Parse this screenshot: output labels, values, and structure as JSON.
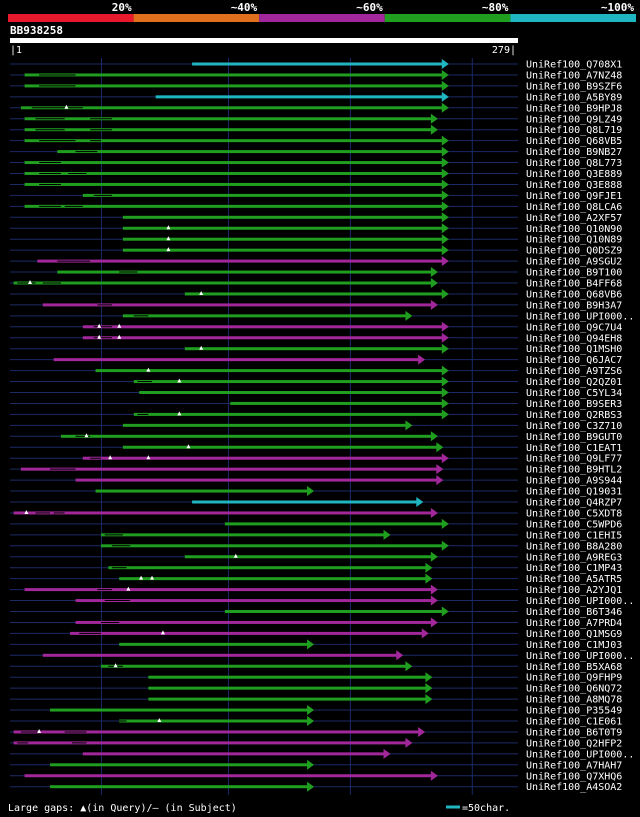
{
  "chart_data": {
    "type": "alignment-overview",
    "query": {
      "name": "BB938258",
      "start": 1,
      "end": 279
    },
    "identity_scale": [
      {
        "label": "20%",
        "color": "#e8192c"
      },
      {
        "label": "~40%",
        "color": "#e0701c"
      },
      {
        "label": "~60%",
        "color": "#a1279a"
      },
      {
        "label": "~80%",
        "color": "#1f9e1f"
      },
      {
        "label": "~100%",
        "color": "#1fb5c1"
      }
    ],
    "footer": {
      "gaps_label": "Large gaps: ▲(in Query)/— (in Subject)",
      "scale_label": "=50char."
    },
    "hits": [
      {
        "name": "UniRef100_Q708X1",
        "start": 100,
        "end": 241,
        "color": "cyan",
        "gaps_q": [],
        "gaps_s": []
      },
      {
        "name": "UniRef100_A7NZ48",
        "start": 8,
        "end": 241,
        "color": "green",
        "gaps_q": [],
        "gaps_s": [
          [
            16,
            36
          ]
        ]
      },
      {
        "name": "UniRef100_B9SZF6",
        "start": 8,
        "end": 241,
        "color": "green",
        "gaps_q": [],
        "gaps_s": [
          [
            16,
            36
          ]
        ]
      },
      {
        "name": "UniRef100_A5BY89",
        "start": 80,
        "end": 241,
        "color": "cyan",
        "gaps_q": [],
        "gaps_s": []
      },
      {
        "name": "UniRef100_B9HPJ8",
        "start": 6,
        "end": 241,
        "color": "green",
        "gaps_q": [
          31
        ],
        "gaps_s": [
          [
            12,
            40
          ]
        ]
      },
      {
        "name": "UniRef100_Q9LZ49",
        "start": 8,
        "end": 235,
        "color": "green",
        "gaps_q": [],
        "gaps_s": [
          [
            14,
            30
          ],
          [
            44,
            56
          ]
        ]
      },
      {
        "name": "UniRef100_Q8L719",
        "start": 8,
        "end": 235,
        "color": "green",
        "gaps_q": [],
        "gaps_s": [
          [
            14,
            30
          ],
          [
            44,
            56
          ]
        ]
      },
      {
        "name": "UniRef100_Q68VB5",
        "start": 8,
        "end": 241,
        "color": "green",
        "gaps_q": [],
        "gaps_s": [
          [
            16,
            36
          ],
          [
            44,
            50
          ]
        ]
      },
      {
        "name": "UniRef100_B9NB27",
        "start": 26,
        "end": 241,
        "color": "green",
        "gaps_q": [],
        "gaps_s": [
          [
            36,
            48
          ]
        ]
      },
      {
        "name": "UniRef100_Q8L773",
        "start": 8,
        "end": 241,
        "color": "green",
        "gaps_q": [],
        "gaps_s": [
          [
            16,
            28
          ]
        ]
      },
      {
        "name": "UniRef100_Q3E889",
        "start": 8,
        "end": 241,
        "color": "green",
        "gaps_q": [],
        "gaps_s": [
          [
            16,
            28
          ],
          [
            32,
            42
          ]
        ]
      },
      {
        "name": "UniRef100_Q3E888",
        "start": 8,
        "end": 241,
        "color": "green",
        "gaps_q": [],
        "gaps_s": [
          [
            16,
            28
          ]
        ]
      },
      {
        "name": "UniRef100_Q9FJE1",
        "start": 40,
        "end": 241,
        "color": "green",
        "gaps_q": [],
        "gaps_s": [
          [
            46,
            56
          ]
        ]
      },
      {
        "name": "UniRef100_Q8LCA6",
        "start": 8,
        "end": 241,
        "color": "green",
        "gaps_q": [],
        "gaps_s": [
          [
            16,
            28
          ],
          [
            30,
            40
          ]
        ]
      },
      {
        "name": "UniRef100_A2XF57",
        "start": 62,
        "end": 241,
        "color": "green",
        "gaps_q": [],
        "gaps_s": []
      },
      {
        "name": "UniRef100_Q10N90",
        "start": 62,
        "end": 241,
        "color": "green",
        "gaps_q": [
          87
        ],
        "gaps_s": []
      },
      {
        "name": "UniRef100_Q10N89",
        "start": 62,
        "end": 241,
        "color": "green",
        "gaps_q": [
          87
        ],
        "gaps_s": []
      },
      {
        "name": "UniRef100_Q0DSZ9",
        "start": 62,
        "end": 241,
        "color": "green",
        "gaps_q": [
          87
        ],
        "gaps_s": []
      },
      {
        "name": "UniRef100_A9SGU2",
        "start": 15,
        "end": 241,
        "color": "purple",
        "gaps_q": [],
        "gaps_s": [
          [
            26,
            44
          ]
        ]
      },
      {
        "name": "UniRef100_B9T100",
        "start": 26,
        "end": 235,
        "color": "green",
        "gaps_q": [],
        "gaps_s": [
          [
            60,
            70
          ]
        ]
      },
      {
        "name": "UniRef100_B4FF68",
        "start": 2,
        "end": 235,
        "color": "green",
        "gaps_q": [
          11
        ],
        "gaps_s": [
          [
            4,
            14
          ],
          [
            18,
            28
          ]
        ]
      },
      {
        "name": "UniRef100_Q68VB6",
        "start": 96,
        "end": 241,
        "color": "green",
        "gaps_q": [
          105
        ],
        "gaps_s": []
      },
      {
        "name": "UniRef100_B9H3A7",
        "start": 18,
        "end": 235,
        "color": "purple",
        "gaps_q": [],
        "gaps_s": [
          [
            48,
            56
          ]
        ]
      },
      {
        "name": "UniRef100_UPI000..",
        "start": 62,
        "end": 221,
        "color": "green",
        "gaps_q": [],
        "gaps_s": [
          [
            68,
            76
          ]
        ]
      },
      {
        "name": "UniRef100_Q9C7U4",
        "start": 40,
        "end": 241,
        "color": "purple",
        "gaps_q": [
          49,
          60
        ],
        "gaps_s": [
          [
            46,
            56
          ]
        ]
      },
      {
        "name": "UniRef100_Q94EH8",
        "start": 40,
        "end": 241,
        "color": "purple",
        "gaps_q": [
          49,
          60
        ],
        "gaps_s": [
          [
            46,
            56
          ]
        ]
      },
      {
        "name": "UniRef100_Q1MSH0",
        "start": 96,
        "end": 241,
        "color": "green",
        "gaps_q": [
          105
        ],
        "gaps_s": []
      },
      {
        "name": "UniRef100_Q6JAC7",
        "start": 24,
        "end": 228,
        "color": "purple",
        "gaps_q": [],
        "gaps_s": []
      },
      {
        "name": "UniRef100_A9TZS6",
        "start": 47,
        "end": 241,
        "color": "green",
        "gaps_q": [
          76
        ],
        "gaps_s": []
      },
      {
        "name": "UniRef100_Q2QZ01",
        "start": 68,
        "end": 241,
        "color": "green",
        "gaps_q": [
          93
        ],
        "gaps_s": [
          [
            70,
            78
          ]
        ]
      },
      {
        "name": "UniRef100_C5YL34",
        "start": 71,
        "end": 241,
        "color": "green",
        "gaps_q": [],
        "gaps_s": []
      },
      {
        "name": "UniRef100_B9SER3",
        "start": 121,
        "end": 241,
        "color": "green",
        "gaps_q": [],
        "gaps_s": []
      },
      {
        "name": "UniRef100_Q2RBS3",
        "start": 68,
        "end": 241,
        "color": "green",
        "gaps_q": [
          93
        ],
        "gaps_s": [
          [
            70,
            76
          ]
        ]
      },
      {
        "name": "UniRef100_C3Z710",
        "start": 62,
        "end": 221,
        "color": "green",
        "gaps_q": [],
        "gaps_s": []
      },
      {
        "name": "UniRef100_B9GUT0",
        "start": 28,
        "end": 235,
        "color": "green",
        "gaps_q": [
          42
        ],
        "gaps_s": [
          [
            36,
            44
          ]
        ]
      },
      {
        "name": "UniRef100_C1EAT1",
        "start": 62,
        "end": 238,
        "color": "green",
        "gaps_q": [
          98
        ],
        "gaps_s": []
      },
      {
        "name": "UniRef100_Q9LF77",
        "start": 40,
        "end": 241,
        "color": "purple",
        "gaps_q": [
          55,
          76
        ],
        "gaps_s": [
          [
            44,
            50
          ]
        ]
      },
      {
        "name": "UniRef100_B9HTL2",
        "start": 6,
        "end": 238,
        "color": "purple",
        "gaps_q": [],
        "gaps_s": [
          [
            22,
            36
          ]
        ]
      },
      {
        "name": "UniRef100_A9S944",
        "start": 36,
        "end": 238,
        "color": "purple",
        "gaps_q": [],
        "gaps_s": []
      },
      {
        "name": "UniRef100_Q19031",
        "start": 47,
        "end": 167,
        "color": "green",
        "gaps_q": [],
        "gaps_s": []
      },
      {
        "name": "UniRef100_Q4RZP7",
        "start": 100,
        "end": 227,
        "color": "cyan",
        "gaps_q": [],
        "gaps_s": []
      },
      {
        "name": "UniRef100_C5XDT8",
        "start": 2,
        "end": 235,
        "color": "purple",
        "gaps_q": [
          9
        ],
        "gaps_s": [
          [
            14,
            22
          ],
          [
            24,
            30
          ]
        ]
      },
      {
        "name": "UniRef100_C5WPD6",
        "start": 118,
        "end": 241,
        "color": "green",
        "gaps_q": [],
        "gaps_s": []
      },
      {
        "name": "UniRef100_C1EHI5",
        "start": 50,
        "end": 209,
        "color": "green",
        "gaps_q": [],
        "gaps_s": [
          [
            52,
            62
          ]
        ]
      },
      {
        "name": "UniRef100_B8A280",
        "start": 50,
        "end": 241,
        "color": "green",
        "gaps_q": [],
        "gaps_s": [
          [
            56,
            66
          ]
        ]
      },
      {
        "name": "UniRef100_A9REG3",
        "start": 96,
        "end": 235,
        "color": "green",
        "gaps_q": [
          124
        ],
        "gaps_s": []
      },
      {
        "name": "UniRef100_C1MP43",
        "start": 54,
        "end": 232,
        "color": "green",
        "gaps_q": [],
        "gaps_s": [
          [
            56,
            64
          ]
        ]
      },
      {
        "name": "UniRef100_A5ATR5",
        "start": 60,
        "end": 232,
        "color": "green",
        "gaps_q": [
          72,
          78
        ],
        "gaps_s": []
      },
      {
        "name": "UniRef100_A2YJQ1",
        "start": 8,
        "end": 235,
        "color": "purple",
        "gaps_q": [
          65
        ],
        "gaps_s": [
          [
            48,
            56
          ]
        ]
      },
      {
        "name": "UniRef100_UPI000..",
        "start": 36,
        "end": 235,
        "color": "purple",
        "gaps_q": [],
        "gaps_s": [
          [
            52,
            66
          ]
        ]
      },
      {
        "name": "UniRef100_B6T346",
        "start": 118,
        "end": 241,
        "color": "green",
        "gaps_q": [],
        "gaps_s": []
      },
      {
        "name": "UniRef100_A7PRD4",
        "start": 36,
        "end": 235,
        "color": "purple",
        "gaps_q": [],
        "gaps_s": [
          [
            50,
            60
          ]
        ]
      },
      {
        "name": "UniRef100_Q1MSG9",
        "start": 33,
        "end": 230,
        "color": "purple",
        "gaps_q": [
          84
        ],
        "gaps_s": [
          [
            38,
            50
          ]
        ]
      },
      {
        "name": "UniRef100_C1MJ03",
        "start": 60,
        "end": 167,
        "color": "green",
        "gaps_q": [],
        "gaps_s": []
      },
      {
        "name": "UniRef100_UPI000..",
        "start": 18,
        "end": 216,
        "color": "purple",
        "gaps_q": [],
        "gaps_s": []
      },
      {
        "name": "UniRef100_B5XA68",
        "start": 50,
        "end": 221,
        "color": "green",
        "gaps_q": [
          58
        ],
        "gaps_s": [
          [
            54,
            62
          ]
        ]
      },
      {
        "name": "UniRef100_Q9FHP9",
        "start": 76,
        "end": 232,
        "color": "green",
        "gaps_q": [],
        "gaps_s": []
      },
      {
        "name": "UniRef100_Q6NQ72",
        "start": 76,
        "end": 232,
        "color": "green",
        "gaps_q": [],
        "gaps_s": []
      },
      {
        "name": "UniRef100_A8MQ78",
        "start": 76,
        "end": 232,
        "color": "green",
        "gaps_q": [],
        "gaps_s": []
      },
      {
        "name": "UniRef100_P35549",
        "start": 22,
        "end": 167,
        "color": "green",
        "gaps_q": [],
        "gaps_s": []
      },
      {
        "name": "UniRef100_C1E061",
        "start": 60,
        "end": 167,
        "color": "green",
        "gaps_q": [
          82
        ],
        "gaps_s": [
          [
            60,
            64
          ]
        ]
      },
      {
        "name": "UniRef100_B6T0T9",
        "start": 2,
        "end": 228,
        "color": "purple",
        "gaps_q": [
          16
        ],
        "gaps_s": [
          [
            6,
            16
          ],
          [
            30,
            42
          ]
        ]
      },
      {
        "name": "UniRef100_Q2HFP2",
        "start": 2,
        "end": 221,
        "color": "purple",
        "gaps_q": [],
        "gaps_s": [
          [
            4,
            10
          ],
          [
            34,
            42
          ]
        ]
      },
      {
        "name": "UniRef100_UPI000..",
        "start": 40,
        "end": 209,
        "color": "purple",
        "gaps_q": [],
        "gaps_s": []
      },
      {
        "name": "UniRef100_A7HAH7",
        "start": 22,
        "end": 167,
        "color": "green",
        "gaps_q": [],
        "gaps_s": []
      },
      {
        "name": "UniRef100_Q7XHQ6",
        "start": 8,
        "end": 235,
        "color": "purple",
        "gaps_q": [],
        "gaps_s": []
      },
      {
        "name": "UniRef100_A4SOA2",
        "start": 22,
        "end": 167,
        "color": "green",
        "gaps_q": [],
        "gaps_s": []
      }
    ]
  },
  "colors": {
    "green": "#1f9e1f",
    "cyan": "#1fb5c1",
    "purple": "#a1279a",
    "gridline": "#1c2a66",
    "background": "#000000",
    "text": "#ffffff"
  }
}
